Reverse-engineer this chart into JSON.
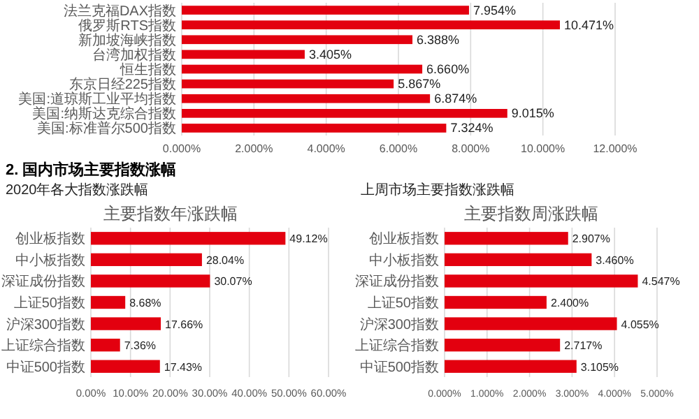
{
  "chart_data": [
    {
      "type": "bar",
      "orientation": "horizontal",
      "categories": [
        "法兰克福DAX指数",
        "俄罗斯RTS指数",
        "新加坡海峡指数",
        "台湾加权指数",
        "恒生指数",
        "东京日经225指数",
        "美国:道琼斯工业平均指数",
        "美国:纳斯达克综合指数",
        "美国:标准普尔500指数"
      ],
      "values": [
        7.954,
        10.471,
        6.388,
        3.405,
        6.66,
        5.867,
        6.874,
        9.015,
        7.324
      ],
      "value_labels": [
        "7.954%",
        "10.471%",
        "6.388%",
        "3.405%",
        "6.660%",
        "5.867%",
        "6.874%",
        "9.015%",
        "7.324%"
      ],
      "color": "#e3000f",
      "xlim": [
        0,
        12
      ],
      "xticks": [
        {
          "value": 0,
          "label": "0.000%"
        },
        {
          "value": 2,
          "label": "2.000%"
        },
        {
          "value": 4,
          "label": "4.000%"
        },
        {
          "value": 6,
          "label": "6.000%"
        },
        {
          "value": 8,
          "label": "8.000%"
        },
        {
          "value": 10,
          "label": "10.000%"
        },
        {
          "value": 12,
          "label": "12.000%"
        }
      ],
      "grid": "x"
    },
    {
      "type": "bar",
      "orientation": "horizontal",
      "title": "主要指数年涨跌幅",
      "subtitle": "2020年各大指数涨跌幅",
      "annotations": [
        "2. 国内市场主要指数涨幅"
      ],
      "categories": [
        "创业板指数",
        "中小板指数",
        "深证成份指数",
        "上证50指数",
        "沪深300指数",
        "上证综合指数",
        "中证500指数"
      ],
      "values": [
        49.12,
        28.04,
        30.07,
        8.68,
        17.66,
        7.36,
        17.43
      ],
      "value_labels": [
        "49.12%",
        "28.04%",
        "30.07%",
        "8.68%",
        "17.66%",
        "7.36%",
        "17.43%"
      ],
      "color": "#e3000f",
      "xlim": [
        0,
        60
      ],
      "xticks": [
        {
          "value": 0,
          "label": "0.00%"
        },
        {
          "value": 10,
          "label": "10.00%"
        },
        {
          "value": 20,
          "label": "20.00%"
        },
        {
          "value": 30,
          "label": "30.00%"
        },
        {
          "value": 40,
          "label": "40.00%"
        },
        {
          "value": 50,
          "label": "50.00%"
        },
        {
          "value": 60,
          "label": "60.00%"
        }
      ],
      "grid": "x"
    },
    {
      "type": "bar",
      "orientation": "horizontal",
      "title": "主要指数周涨跌幅",
      "subtitle": "上周市场主要指数涨跌幅",
      "categories": [
        "创业板指数",
        "中小板指数",
        "深证成份指数",
        "上证50指数",
        "沪深300指数",
        "上证综合指数",
        "中证500指数"
      ],
      "values": [
        2.907,
        3.46,
        4.547,
        2.4,
        4.055,
        2.717,
        3.105
      ],
      "value_labels": [
        "2.907%",
        "3.460%",
        "4.547%",
        "2.400%",
        "4.055%",
        "2.717%",
        "3.105%"
      ],
      "color": "#e3000f",
      "xlim": [
        0,
        5
      ],
      "xticks": [
        {
          "value": 0,
          "label": "0.000%"
        },
        {
          "value": 1,
          "label": "1.000%"
        },
        {
          "value": 2,
          "label": "2.000%"
        },
        {
          "value": 3,
          "label": "3.000%"
        },
        {
          "value": 4,
          "label": "4.000%"
        },
        {
          "value": 5,
          "label": "5.000%"
        }
      ],
      "grid": "x"
    }
  ]
}
